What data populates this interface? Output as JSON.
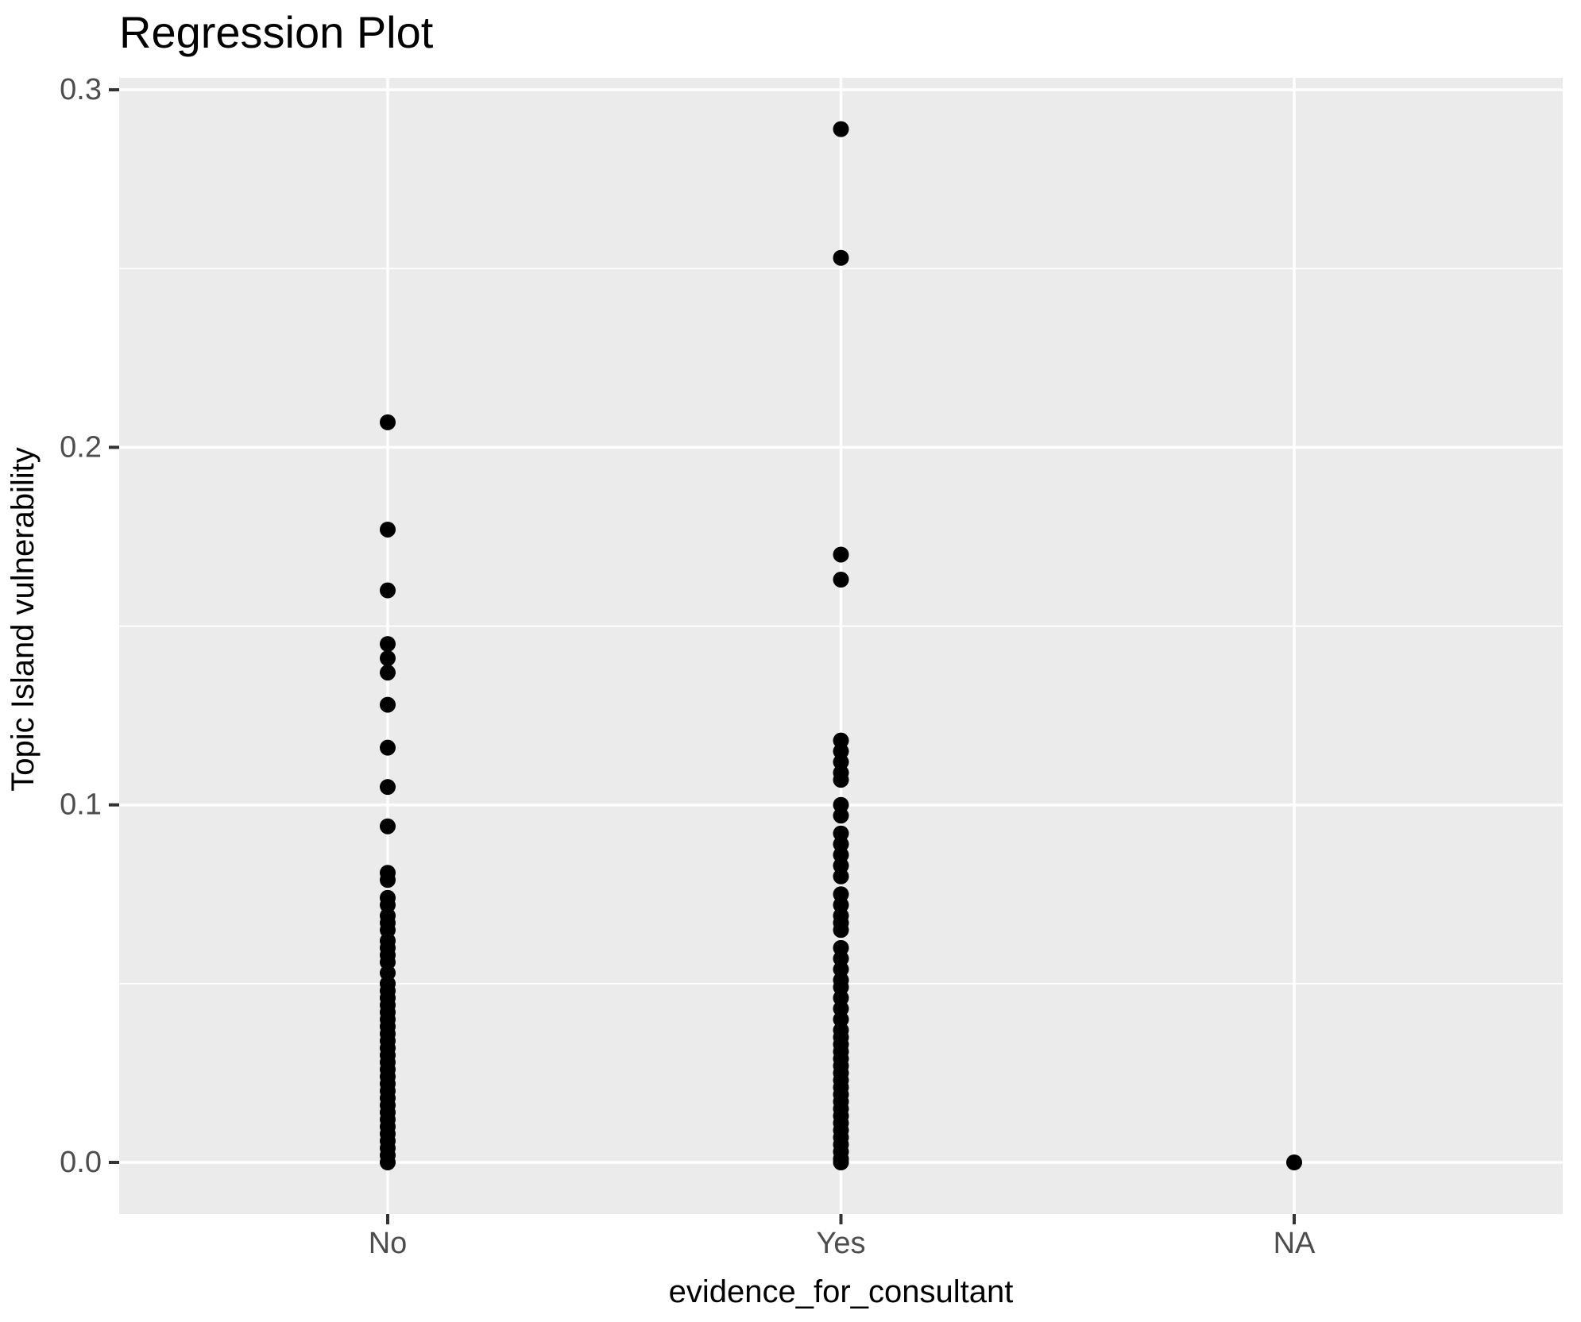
{
  "chart_data": {
    "type": "scatter",
    "title": "Regression Plot",
    "xlabel": "evidence_for_consultant",
    "ylabel": "Topic Island vulnerability",
    "categories": [
      "No",
      "Yes",
      "NA"
    ],
    "y_axis": {
      "min": 0.0,
      "max": 0.3,
      "major_ticks": [
        0.0,
        0.1,
        0.2,
        0.3
      ],
      "tick_labels": [
        "0.0",
        "0.1",
        "0.2",
        "0.3"
      ],
      "minor_gridlines": [
        0.05,
        0.15,
        0.25
      ]
    },
    "legend_position": "none",
    "grid": "on",
    "series": [
      {
        "name": "No",
        "values": [
          0.207,
          0.177,
          0.16,
          0.145,
          0.141,
          0.137,
          0.128,
          0.116,
          0.105,
          0.094,
          0.081,
          0.079,
          0.074,
          0.072,
          0.069,
          0.067,
          0.065,
          0.062,
          0.06,
          0.058,
          0.056,
          0.053,
          0.05,
          0.048,
          0.046,
          0.044,
          0.042,
          0.04,
          0.038,
          0.036,
          0.034,
          0.032,
          0.03,
          0.028,
          0.026,
          0.024,
          0.022,
          0.02,
          0.018,
          0.016,
          0.014,
          0.012,
          0.01,
          0.008,
          0.006,
          0.004,
          0.002,
          0.0
        ]
      },
      {
        "name": "Yes",
        "values": [
          0.289,
          0.253,
          0.17,
          0.163,
          0.118,
          0.115,
          0.112,
          0.109,
          0.107,
          0.1,
          0.097,
          0.092,
          0.089,
          0.086,
          0.083,
          0.08,
          0.075,
          0.072,
          0.069,
          0.067,
          0.065,
          0.06,
          0.057,
          0.054,
          0.051,
          0.049,
          0.046,
          0.043,
          0.04,
          0.037,
          0.035,
          0.033,
          0.031,
          0.029,
          0.027,
          0.025,
          0.023,
          0.021,
          0.019,
          0.017,
          0.015,
          0.013,
          0.011,
          0.009,
          0.007,
          0.005,
          0.003,
          0.001,
          0.0
        ]
      },
      {
        "name": "NA",
        "values": [
          0.0
        ]
      }
    ],
    "colors": {
      "point": "#000000",
      "panel_background": "#EBEBEB",
      "gridline": "#FFFFFF",
      "tick_mark": "#333333",
      "tick_text": "#4D4D4D",
      "title_text": "#000000",
      "figure_background": "#FFFFFF"
    }
  }
}
